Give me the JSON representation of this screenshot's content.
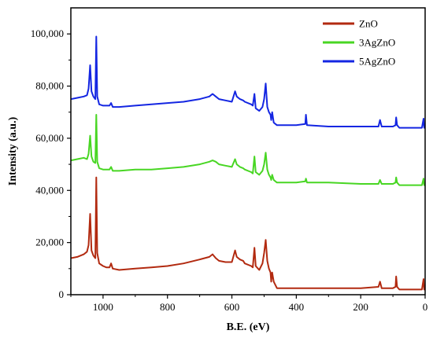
{
  "chart_data": {
    "type": "line",
    "title": "",
    "xlabel": "B.E. (eV)",
    "ylabel": "Intensity (a.u.)",
    "xlim": [
      1100,
      0
    ],
    "ylim": [
      0,
      110000
    ],
    "x_reversed": true,
    "x_ticks": [
      1000,
      800,
      600,
      400,
      200,
      0
    ],
    "x_tick_labels": [
      "1000",
      "800",
      "600",
      "400",
      "200",
      "0"
    ],
    "y_ticks": [
      0,
      20000,
      40000,
      60000,
      80000,
      100000
    ],
    "y_tick_labels": [
      "0",
      "20,000",
      "40,000",
      "60,000",
      "80,000",
      "100,000"
    ],
    "grid": false,
    "legend_position": "top-right",
    "series": [
      {
        "name": "ZnO",
        "color": "#b22a10",
        "points": [
          [
            1100,
            14000
          ],
          [
            1080,
            14500
          ],
          [
            1060,
            15500
          ],
          [
            1050,
            16500
          ],
          [
            1045,
            19000
          ],
          [
            1040,
            31000
          ],
          [
            1036,
            17000
          ],
          [
            1030,
            15000
          ],
          [
            1024,
            14000
          ],
          [
            1021,
            45000
          ],
          [
            1018,
            16000
          ],
          [
            1012,
            12000
          ],
          [
            1000,
            11000
          ],
          [
            990,
            10500
          ],
          [
            980,
            10500
          ],
          [
            975,
            12000
          ],
          [
            970,
            10000
          ],
          [
            950,
            9500
          ],
          [
            900,
            10000
          ],
          [
            850,
            10500
          ],
          [
            800,
            11000
          ],
          [
            750,
            12000
          ],
          [
            700,
            13500
          ],
          [
            670,
            14500
          ],
          [
            660,
            15500
          ],
          [
            650,
            14000
          ],
          [
            640,
            13000
          ],
          [
            620,
            12500
          ],
          [
            600,
            12500
          ],
          [
            590,
            17000
          ],
          [
            585,
            14500
          ],
          [
            575,
            13500
          ],
          [
            565,
            13000
          ],
          [
            560,
            12000
          ],
          [
            540,
            11000
          ],
          [
            535,
            10500
          ],
          [
            530,
            18000
          ],
          [
            526,
            11000
          ],
          [
            515,
            9500
          ],
          [
            505,
            12000
          ],
          [
            500,
            16000
          ],
          [
            495,
            21000
          ],
          [
            490,
            13000
          ],
          [
            485,
            10000
          ],
          [
            480,
            8500
          ],
          [
            478,
            5000
          ],
          [
            475,
            8500
          ],
          [
            470,
            5000
          ],
          [
            460,
            2500
          ],
          [
            400,
            2500
          ],
          [
            370,
            2500
          ],
          [
            300,
            2500
          ],
          [
            200,
            2500
          ],
          [
            145,
            3000
          ],
          [
            140,
            5000
          ],
          [
            135,
            2500
          ],
          [
            100,
            2500
          ],
          [
            92,
            3000
          ],
          [
            90,
            7000
          ],
          [
            87,
            3000
          ],
          [
            80,
            2000
          ],
          [
            40,
            2000
          ],
          [
            10,
            2000
          ],
          [
            5,
            6000
          ],
          [
            3,
            2000
          ],
          [
            0,
            2000
          ]
        ]
      },
      {
        "name": "3AgZnO",
        "color": "#48d623",
        "points": [
          [
            1100,
            51500
          ],
          [
            1080,
            52000
          ],
          [
            1060,
            52500
          ],
          [
            1050,
            52000
          ],
          [
            1045,
            54000
          ],
          [
            1040,
            61000
          ],
          [
            1036,
            53000
          ],
          [
            1030,
            51000
          ],
          [
            1024,
            50500
          ],
          [
            1021,
            69000
          ],
          [
            1018,
            51000
          ],
          [
            1012,
            48500
          ],
          [
            1000,
            48000
          ],
          [
            990,
            48000
          ],
          [
            980,
            48000
          ],
          [
            975,
            49000
          ],
          [
            970,
            47500
          ],
          [
            950,
            47500
          ],
          [
            900,
            48000
          ],
          [
            850,
            48000
          ],
          [
            800,
            48500
          ],
          [
            750,
            49000
          ],
          [
            700,
            50000
          ],
          [
            670,
            51000
          ],
          [
            660,
            51500
          ],
          [
            650,
            51000
          ],
          [
            640,
            50000
          ],
          [
            620,
            49500
          ],
          [
            600,
            49000
          ],
          [
            590,
            52000
          ],
          [
            585,
            50000
          ],
          [
            575,
            49000
          ],
          [
            565,
            48500
          ],
          [
            560,
            48000
          ],
          [
            540,
            47000
          ],
          [
            535,
            46500
          ],
          [
            530,
            53000
          ],
          [
            526,
            47000
          ],
          [
            515,
            46000
          ],
          [
            505,
            47500
          ],
          [
            500,
            50000
          ],
          [
            495,
            54500
          ],
          [
            490,
            48000
          ],
          [
            485,
            46000
          ],
          [
            480,
            45000
          ],
          [
            478,
            44000
          ],
          [
            475,
            46000
          ],
          [
            470,
            44000
          ],
          [
            460,
            43000
          ],
          [
            400,
            43000
          ],
          [
            372,
            43500
          ],
          [
            370,
            44500
          ],
          [
            367,
            43000
          ],
          [
            300,
            43000
          ],
          [
            200,
            42500
          ],
          [
            145,
            42500
          ],
          [
            140,
            44000
          ],
          [
            135,
            42500
          ],
          [
            100,
            42500
          ],
          [
            92,
            43000
          ],
          [
            90,
            45000
          ],
          [
            87,
            43000
          ],
          [
            80,
            42000
          ],
          [
            40,
            42000
          ],
          [
            10,
            42000
          ],
          [
            5,
            44500
          ],
          [
            3,
            42000
          ],
          [
            0,
            42000
          ]
        ]
      },
      {
        "name": "5AgZnO",
        "color": "#1426e2",
        "points": [
          [
            1100,
            75000
          ],
          [
            1080,
            75500
          ],
          [
            1060,
            76000
          ],
          [
            1050,
            76500
          ],
          [
            1045,
            79000
          ],
          [
            1040,
            88000
          ],
          [
            1036,
            78000
          ],
          [
            1030,
            76000
          ],
          [
            1024,
            75000
          ],
          [
            1021,
            99000
          ],
          [
            1018,
            76000
          ],
          [
            1012,
            73000
          ],
          [
            1000,
            72500
          ],
          [
            990,
            72500
          ],
          [
            980,
            72500
          ],
          [
            975,
            73500
          ],
          [
            970,
            72000
          ],
          [
            950,
            72000
          ],
          [
            900,
            72500
          ],
          [
            850,
            73000
          ],
          [
            800,
            73500
          ],
          [
            750,
            74000
          ],
          [
            700,
            75000
          ],
          [
            670,
            76000
          ],
          [
            660,
            77000
          ],
          [
            650,
            76000
          ],
          [
            640,
            75000
          ],
          [
            620,
            74500
          ],
          [
            600,
            74000
          ],
          [
            590,
            78000
          ],
          [
            585,
            76000
          ],
          [
            575,
            75000
          ],
          [
            565,
            74500
          ],
          [
            560,
            74000
          ],
          [
            540,
            73000
          ],
          [
            535,
            72500
          ],
          [
            530,
            77000
          ],
          [
            526,
            71500
          ],
          [
            515,
            70500
          ],
          [
            505,
            72000
          ],
          [
            500,
            75000
          ],
          [
            495,
            81000
          ],
          [
            490,
            72000
          ],
          [
            485,
            70000
          ],
          [
            480,
            69000
          ],
          [
            478,
            67000
          ],
          [
            475,
            70000
          ],
          [
            470,
            66000
          ],
          [
            460,
            65000
          ],
          [
            400,
            65000
          ],
          [
            372,
            65500
          ],
          [
            370,
            69000
          ],
          [
            367,
            65000
          ],
          [
            300,
            64500
          ],
          [
            200,
            64500
          ],
          [
            145,
            64500
          ],
          [
            140,
            67000
          ],
          [
            135,
            64500
          ],
          [
            100,
            64500
          ],
          [
            92,
            65000
          ],
          [
            90,
            68000
          ],
          [
            87,
            65000
          ],
          [
            80,
            64000
          ],
          [
            40,
            64000
          ],
          [
            10,
            64000
          ],
          [
            5,
            67500
          ],
          [
            3,
            64000
          ],
          [
            0,
            64000
          ]
        ]
      }
    ]
  }
}
